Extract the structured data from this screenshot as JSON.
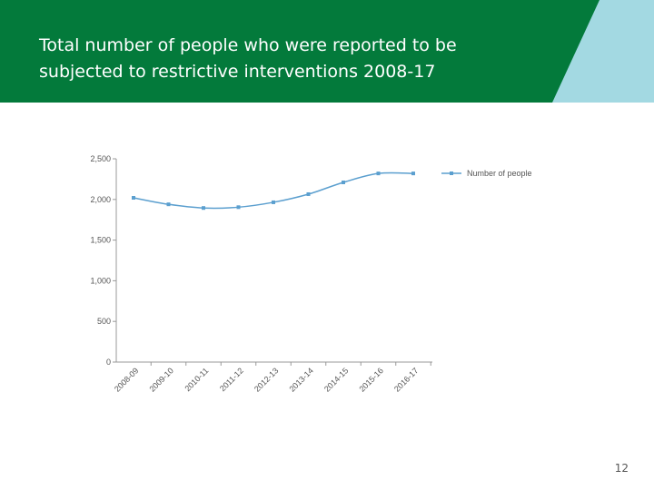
{
  "slide": {
    "title_lines": [
      "Total number of people who were reported to be",
      "subjected to restrictive interventions 2008-17"
    ],
    "page_number": "12",
    "colors": {
      "green": "#037a3b",
      "light_blue": "#a3d9e2",
      "series": "#5b9fcf",
      "axis": "#999999",
      "text": "#555555"
    }
  },
  "chart_data": {
    "type": "line",
    "title": "",
    "xlabel": "",
    "ylabel": "",
    "categories": [
      "2008-09",
      "2009-10",
      "2010-11",
      "2011-12",
      "2012-13",
      "2013-14",
      "2014-15",
      "2015-16",
      "2016-17"
    ],
    "y_ticks": [
      "0",
      "500",
      "1,000",
      "1,500",
      "2,000",
      "2,500"
    ],
    "ylim": [
      0,
      2500
    ],
    "grid": false,
    "legend_position": "top-right",
    "series": [
      {
        "name": "Number of people",
        "values": [
          2020,
          1940,
          1895,
          1905,
          1965,
          2065,
          2210,
          2320,
          2320
        ]
      }
    ]
  }
}
